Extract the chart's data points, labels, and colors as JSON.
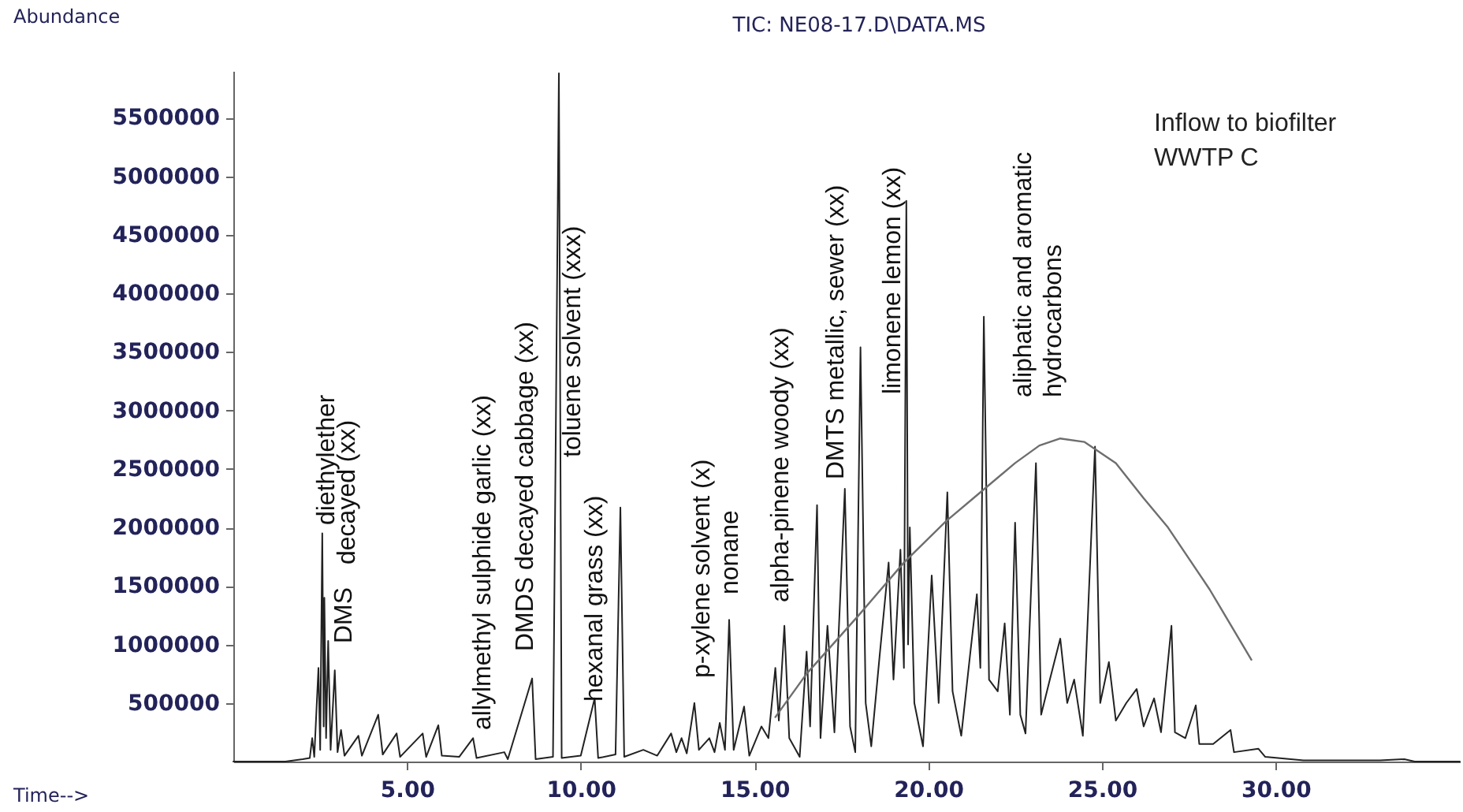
{
  "chart_data": {
    "type": "line",
    "title": "TIC: NE08-17.D\\DATA.MS",
    "xlabel": "Time-->",
    "ylabel": "Abundance",
    "xlim": [
      0,
      35.3
    ],
    "ylim": [
      0,
      5900000
    ],
    "xticks": [
      {
        "value": 5,
        "label": "5.00"
      },
      {
        "value": 10,
        "label": "10.00"
      },
      {
        "value": 15,
        "label": "15.00"
      },
      {
        "value": 20,
        "label": "20.00"
      },
      {
        "value": 25,
        "label": "25.00"
      },
      {
        "value": 30,
        "label": "30.00"
      }
    ],
    "yticks": [
      500000,
      1000000,
      1500000,
      2000000,
      2500000,
      3000000,
      3500000,
      4000000,
      4500000,
      5000000,
      5500000
    ],
    "annotations": [
      "Inflow to biofilter\nWWTP C",
      "diethylether",
      "decayed (xx)",
      "DMS",
      "allylmethyl sulphide   garlic (xx)",
      "DMDS   decayed cabbage (xx)",
      "toluene   solvent (xxx)",
      "hexanal   grass (xx)",
      "p-xylene   solvent (x)",
      "nonane",
      "alpha-pinene   woody (xx)",
      "DMTS   metallic, sewer (xx)",
      "limonene   lemon (xx)",
      "aliphatic and aromatic",
      "hydrocarbons"
    ],
    "series": [
      {
        "color": "#222222",
        "x": [
          0,
          1.5,
          2.0,
          2.2,
          2.27,
          2.33,
          2.45,
          2.5,
          2.56,
          2.6,
          2.62,
          2.67,
          2.73,
          2.8,
          2.92,
          3.0,
          3.1,
          3.2,
          3.6,
          3.7,
          4.17,
          4.3,
          4.7,
          4.8,
          5.45,
          5.55,
          5.9,
          6.0,
          6.5,
          6.9,
          7.0,
          7.8,
          7.9,
          8.6,
          8.7,
          9.2,
          9.37,
          9.45,
          10.0,
          10.4,
          10.5,
          11.0,
          11.14,
          11.25,
          11.8,
          12.2,
          12.6,
          12.75,
          12.9,
          13.05,
          13.27,
          13.4,
          13.7,
          13.85,
          14.0,
          14.15,
          14.27,
          14.4,
          14.7,
          14.85,
          15.2,
          15.4,
          15.6,
          15.7,
          15.86,
          16.0,
          16.3,
          16.5,
          16.6,
          16.8,
          16.9,
          17.1,
          17.3,
          17.6,
          17.75,
          17.9,
          18.05,
          18.2,
          18.36,
          18.6,
          18.86,
          19.0,
          19.2,
          19.3,
          19.37,
          19.42,
          19.47,
          19.6,
          19.85,
          20.1,
          20.3,
          20.55,
          20.7,
          20.95,
          21.2,
          21.4,
          21.5,
          21.6,
          21.75,
          22.0,
          22.2,
          22.35,
          22.5,
          22.65,
          22.8,
          23.1,
          23.25,
          23.5,
          23.8,
          24.0,
          24.2,
          24.45,
          24.8,
          24.95,
          25.2,
          25.4,
          25.7,
          26.0,
          26.2,
          26.5,
          26.7,
          27.0,
          27.1,
          27.4,
          27.7,
          27.8,
          28.2,
          28.7,
          28.8,
          29.5,
          29.7,
          30.8,
          33.0,
          33.7,
          34.0,
          35.3
        ],
        "values": [
          0,
          0,
          20000,
          30000,
          200000,
          40000,
          800000,
          100000,
          1950000,
          300000,
          1400000,
          200000,
          1030000,
          100000,
          780000,
          80000,
          270000,
          50000,
          220000,
          50000,
          400000,
          60000,
          240000,
          40000,
          240000,
          40000,
          310000,
          50000,
          40000,
          200000,
          30000,
          80000,
          20000,
          710000,
          20000,
          40000,
          5880000,
          30000,
          50000,
          540000,
          30000,
          60000,
          2170000,
          40000,
          100000,
          50000,
          240000,
          80000,
          200000,
          70000,
          500000,
          100000,
          200000,
          80000,
          330000,
          100000,
          1210000,
          100000,
          470000,
          50000,
          300000,
          200000,
          800000,
          350000,
          1160000,
          200000,
          40000,
          940000,
          300000,
          2190000,
          200000,
          1160000,
          250000,
          2330000,
          300000,
          80000,
          3540000,
          500000,
          130000,
          900000,
          1700000,
          700000,
          1810000,
          800000,
          4790000,
          1000000,
          2000000,
          500000,
          130000,
          1590000,
          500000,
          2300000,
          600000,
          220000,
          900000,
          1430000,
          800000,
          3800000,
          700000,
          600000,
          1180000,
          400000,
          2040000,
          400000,
          240000,
          2550000,
          400000,
          700000,
          1050000,
          500000,
          700000,
          220000,
          2690000,
          500000,
          850000,
          350000,
          500000,
          620000,
          300000,
          540000,
          250000,
          1160000,
          250000,
          200000,
          480000,
          150000,
          150000,
          270000,
          80000,
          110000,
          40000,
          10000,
          10000,
          20000,
          0,
          0
        ]
      },
      {
        "color": "#6e6e6e",
        "x": [
          15.6,
          16.5,
          18,
          19.3,
          20.5,
          21.5,
          22.5,
          23.2,
          23.8,
          24.5,
          25.4,
          26.2,
          26.9,
          28.1,
          29.3
        ],
        "values": [
          380000,
          750000,
          1250000,
          1700000,
          2050000,
          2300000,
          2550000,
          2700000,
          2760000,
          2730000,
          2550000,
          2250000,
          2000000,
          1470000,
          870000
        ]
      }
    ]
  }
}
